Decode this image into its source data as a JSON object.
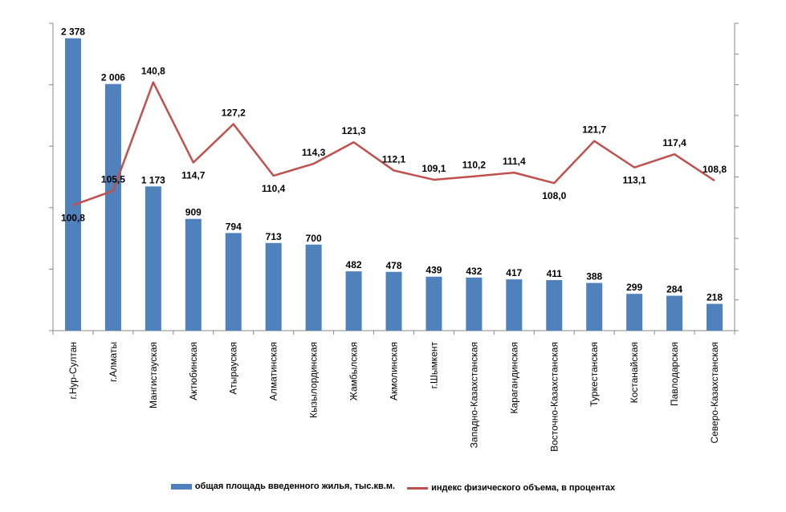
{
  "chart_data": {
    "type": "bar",
    "categories": [
      "г.Нур-Султан",
      "г.Алматы",
      "Мангистауская",
      "Актюбинская",
      "Атырауская",
      "Алматинская",
      "Кызылординская",
      "Жамбылская",
      "Акмолинская",
      "г.Шымкент",
      "Западно-Казахстанская",
      "Карагандинская",
      "Восточно-Казахстанская",
      "Туркестанская",
      "Костанайская",
      "Павлодарская",
      "Северо-Казахстанская"
    ],
    "series": [
      {
        "name": "общая площадь введенного жилья, тыс.кв.м.",
        "type": "bar",
        "axis": "left",
        "color": "#4F81BD",
        "values": [
          2378,
          2006,
          1173,
          909,
          794,
          713,
          700,
          482,
          478,
          439,
          432,
          417,
          411,
          388,
          299,
          284,
          218
        ],
        "labels": [
          "2 378",
          "2 006",
          "1 173",
          "909",
          "794",
          "713",
          "700",
          "482",
          "478",
          "439",
          "432",
          "417",
          "411",
          "388",
          "299",
          "284",
          "218"
        ]
      },
      {
        "name": "индекс физического объема, в процентах",
        "type": "line",
        "axis": "right",
        "color": "#C0504D",
        "values": [
          100.8,
          105.5,
          140.8,
          114.7,
          127.2,
          110.4,
          114.3,
          121.3,
          112.1,
          109.1,
          110.2,
          111.4,
          108.0,
          121.7,
          113.1,
          117.4,
          108.8
        ],
        "labels": [
          "100,8",
          "105,5",
          "140,8",
          "114,7",
          "127,2",
          "110,4",
          "114,3",
          "121,3",
          "112,1",
          "109,1",
          "110,2",
          "111,4",
          "108,0",
          "121,7",
          "113,1",
          "117,4",
          "108,8"
        ]
      }
    ],
    "ylim": [
      0,
      2500
    ],
    "y2lim": [
      60,
      160
    ],
    "legend_position": "bottom",
    "grid": false
  }
}
